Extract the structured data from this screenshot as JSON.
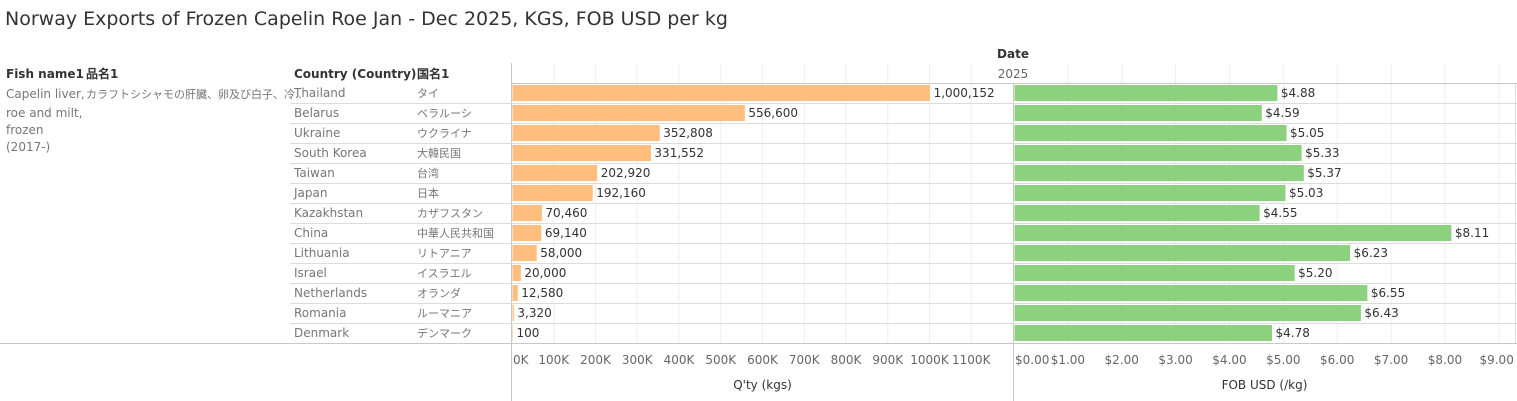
{
  "title": "Norway Exports of Frozen Capelin Roe Jan - Dec 2025, KGS, FOB USD per kg",
  "headers": {
    "fish_name": "Fish name1",
    "hinmei": "品名1",
    "country": "Country (Country)",
    "kokumei": "国名1",
    "date": "Date",
    "year": "2025"
  },
  "fish": {
    "name_lines": [
      "Capelin liver,",
      "roe and milt,",
      "frozen",
      "(2017-)"
    ],
    "jp": "カラフトシシャモの肝臓、卵及び白子、冷.."
  },
  "colors": {
    "qty_bar": "#ffbe7d",
    "fob_bar": "#8cd17d",
    "grid": "#cfcfcf",
    "divider": "#c8c8c8"
  },
  "chart_data": [
    {
      "type": "bar",
      "orientation": "horizontal",
      "xlabel": "Q'ty (kgs)",
      "categories": [
        "Thailand",
        "Belarus",
        "Ukraine",
        "South Korea",
        "Taiwan",
        "Japan",
        "Kazakhstan",
        "China",
        "Lithuania",
        "Israel",
        "Netherlands",
        "Romania",
        "Denmark"
      ],
      "categories_jp": [
        "タイ",
        "ベラルーシ",
        "ウクライナ",
        "大韓民国",
        "台湾",
        "日本",
        "カザフスタン",
        "中華人民共和国",
        "リトアニア",
        "イスラエル",
        "オランダ",
        "ルーマニア",
        "デンマーク"
      ],
      "values": [
        1000152,
        556600,
        352808,
        331552,
        202920,
        192160,
        70460,
        69140,
        58000,
        20000,
        12580,
        3320,
        100
      ],
      "value_labels": [
        "1,000,152",
        "556,600",
        "352,808",
        "331,552",
        "202,920",
        "192,160",
        "70,460",
        "69,140",
        "58,000",
        "20,000",
        "12,580",
        "3,320",
        "100"
      ],
      "xlim": [
        0,
        1200000
      ],
      "ticks": [
        0,
        100000,
        200000,
        300000,
        400000,
        500000,
        600000,
        700000,
        800000,
        900000,
        1000000,
        1100000
      ],
      "tick_labels": [
        "0K",
        "100K",
        "200K",
        "300K",
        "400K",
        "500K",
        "600K",
        "700K",
        "800K",
        "900K",
        "1000K",
        "1100K"
      ],
      "grid": true
    },
    {
      "type": "bar",
      "orientation": "horizontal",
      "xlabel": "FOB USD (/kg)",
      "categories": [
        "Thailand",
        "Belarus",
        "Ukraine",
        "South Korea",
        "Taiwan",
        "Japan",
        "Kazakhstan",
        "China",
        "Lithuania",
        "Israel",
        "Netherlands",
        "Romania",
        "Denmark"
      ],
      "values": [
        4.88,
        4.59,
        5.05,
        5.33,
        5.37,
        5.03,
        4.55,
        8.11,
        6.23,
        5.2,
        6.55,
        6.43,
        4.78
      ],
      "value_labels": [
        "$4.88",
        "$4.59",
        "$5.05",
        "$5.33",
        "$5.37",
        "$5.03",
        "$4.55",
        "$8.11",
        "$6.23",
        "$5.20",
        "$6.55",
        "$6.43",
        "$4.78"
      ],
      "xlim": [
        0,
        9.3
      ],
      "ticks": [
        0,
        1,
        2,
        3,
        4,
        5,
        6,
        7,
        8,
        9
      ],
      "tick_labels": [
        "$0.00",
        "$1.00",
        "$2.00",
        "$3.00",
        "$4.00",
        "$5.00",
        "$6.00",
        "$7.00",
        "$8.00",
        "$9.00"
      ],
      "grid": true
    }
  ]
}
